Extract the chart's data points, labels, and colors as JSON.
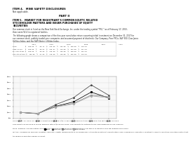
{
  "title_item4": "ITEM 4.   MINE SAFETY DISCLOSURES",
  "subtitle_item4": "Not applicable.",
  "part_label": "PART II",
  "title_item5": "ITEM 5.   MARKET FOR REGISTRANT'S COMMON EQUITY, RELATED\nSTOCKHOLDER MATTERS AND ISSUER PURCHASES OF EQUITY\nSECURITIES",
  "body1": "Our common stock is listed on the New York Stock Exchange, Inc. under the trading symbol \"PSC,\" as of February 17, 2023,\nthere were 92.4 in registered holders.",
  "body2": "The following graph shows a comparison of the five-year cumulative return assuming initial investment on December 31, 2017 for\nour common stock, publicly traded peer companies and assumed payment of dividends. Our Company, Peer PSCo, S&P 500, Dow Jones\nUtilities Index, and the S&P Electric Utilities Index.",
  "table_header": [
    "",
    "2017",
    "",
    "2018",
    "",
    "2019",
    "",
    "2020",
    "",
    "2021",
    "",
    "2022",
    ""
  ],
  "years": [
    2017,
    2018,
    2019,
    2020,
    2021,
    2022
  ],
  "series": {
    "PSCO": [
      100.0,
      96.11,
      120.55,
      135.0,
      168.0,
      148.0
    ],
    "S&P 500": [
      100.0,
      95.62,
      126.07,
      149.0,
      192.0,
      157.0
    ],
    "DJ Utilities": [
      100.0,
      96.0,
      120.0,
      130.0,
      158.0,
      152.0
    ],
    "S&P Utilities": [
      100.0,
      97.0,
      118.0,
      128.0,
      155.0,
      149.0
    ]
  },
  "colors": {
    "PSCO": "#000000",
    "S&P 500": "#444444",
    "DJ Utilities": "#888888",
    "S&P Utilities": "#aaaaaa"
  },
  "markers": {
    "PSCO": "s",
    "S&P 500": "^",
    "DJ Utilities": "o",
    "S&P Utilities": "D"
  },
  "ylim": [
    80,
    220
  ],
  "yticks": [
    80,
    100,
    120,
    140,
    160,
    180,
    200,
    220
  ],
  "ytick_labels": [
    "$80",
    "$100",
    "$120",
    "$140",
    "$160",
    "$180",
    "$200",
    "$220"
  ],
  "footer_text": "On February 14, 2023, our Board of Directors approved a $0.77 per share common stock dividend for the first quarter of 2023.\nThis reflects an increase in annual dividend rate of $3.08 per share. The capacity to continue to pay cash dividends on our common\nstock, however, the declaration and payment of future dividends is at the discretion of our Board of Directors and will depend upon many\nfactors, including our financial condition, earnings, capital requirements of our businesses, alternate investment opportunities, legal compliance, regulatory constraints, industry practices and other factors that\nthe Board of Directors deems relevant.",
  "background_color": "#ffffff"
}
